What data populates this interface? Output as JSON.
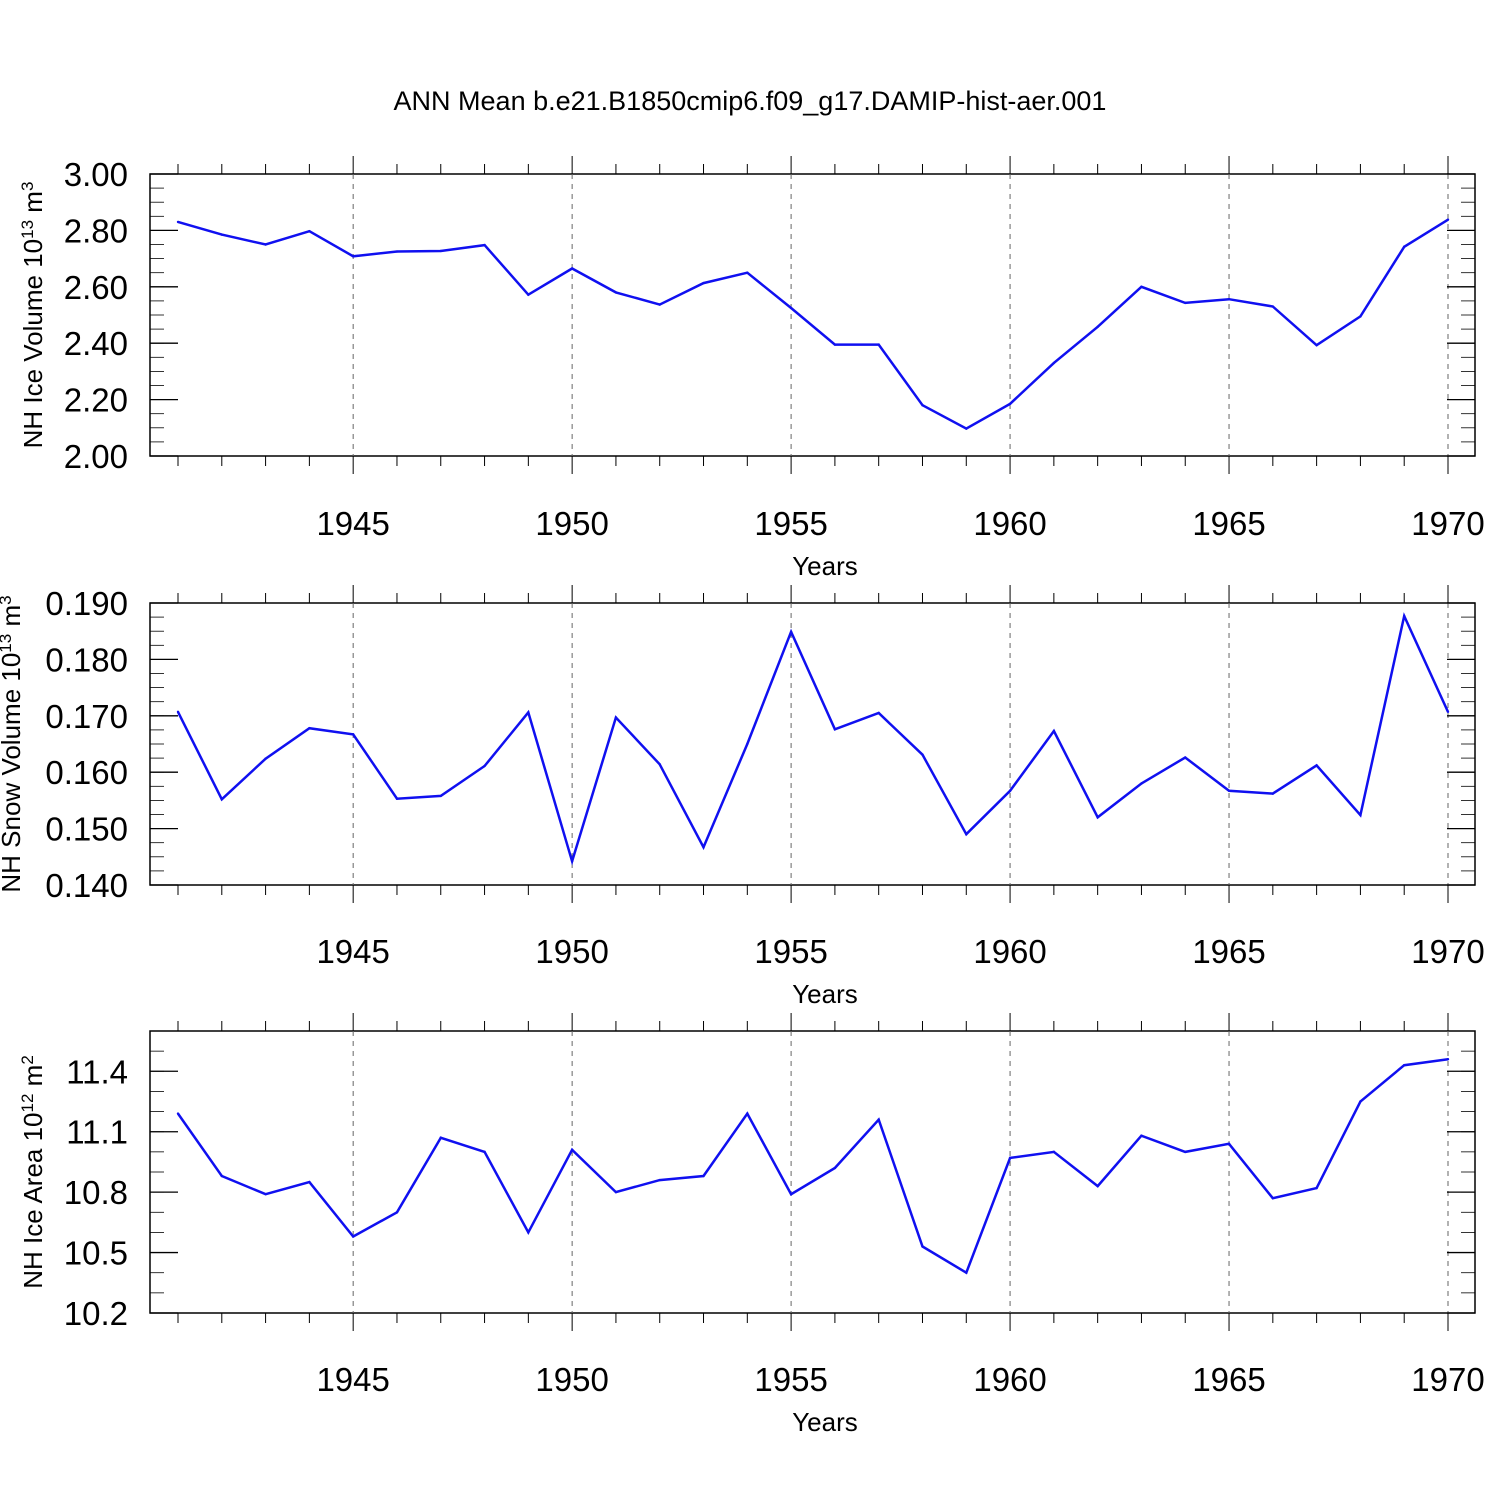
{
  "title": "ANN Mean b.e21.B1850cmip6.f09_g17.DAMIP-hist-aer.001",
  "colors": {
    "line": "#1010f0",
    "axis": "#000000",
    "grid": "#666666"
  },
  "chart_data": [
    {
      "type": "line",
      "ylabel": {
        "text": "NH Ice Volume 10",
        "sup": "13",
        "unit": " m",
        "unit_sup": "3"
      },
      "xlabel": "Years",
      "xlim": [
        1941,
        1970
      ],
      "ylim": [
        2.0,
        3.0
      ],
      "x_ticks": [
        1945,
        1950,
        1955,
        1960,
        1965,
        1970
      ],
      "x_tick_labels": [
        "1945",
        "1950",
        "1955",
        "1960",
        "1965",
        "1970"
      ],
      "y_ticks": [
        2.0,
        2.2,
        2.4,
        2.6,
        2.8,
        3.0
      ],
      "y_tick_labels": [
        "2.00",
        "2.20",
        "2.40",
        "2.60",
        "2.80",
        "3.00"
      ],
      "y_minor_step": 0.05,
      "grid": "x dashed at major ticks",
      "x": [
        1941,
        1942,
        1943,
        1944,
        1945,
        1946,
        1947,
        1948,
        1949,
        1950,
        1951,
        1952,
        1953,
        1954,
        1955,
        1956,
        1957,
        1958,
        1959,
        1960,
        1961,
        1962,
        1963,
        1964,
        1965,
        1966,
        1967,
        1968,
        1969,
        1970
      ],
      "values": [
        2.83,
        2.785,
        2.75,
        2.797,
        2.708,
        2.725,
        2.727,
        2.748,
        2.572,
        2.665,
        2.58,
        2.537,
        2.613,
        2.65,
        2.525,
        2.395,
        2.395,
        2.18,
        2.097,
        2.185,
        2.33,
        2.458,
        2.6,
        2.543,
        2.556,
        2.53,
        2.393,
        2.495,
        2.742,
        2.838
      ]
    },
    {
      "type": "line",
      "ylabel": {
        "text": "NH Snow Volume 10",
        "sup": "13",
        "unit": " m",
        "unit_sup": "3"
      },
      "xlabel": "Years",
      "xlim": [
        1941,
        1970
      ],
      "ylim": [
        0.14,
        0.19
      ],
      "x_ticks": [
        1945,
        1950,
        1955,
        1960,
        1965,
        1970
      ],
      "x_tick_labels": [
        "1945",
        "1950",
        "1955",
        "1960",
        "1965",
        "1970"
      ],
      "y_ticks": [
        0.14,
        0.15,
        0.16,
        0.17,
        0.18,
        0.19
      ],
      "y_tick_labels": [
        "0.140",
        "0.150",
        "0.160",
        "0.170",
        "0.180",
        "0.190"
      ],
      "y_minor_step": 0.0025,
      "grid": "x dashed at major ticks",
      "x": [
        1941,
        1942,
        1943,
        1944,
        1945,
        1946,
        1947,
        1948,
        1949,
        1950,
        1951,
        1952,
        1953,
        1954,
        1955,
        1956,
        1957,
        1958,
        1959,
        1960,
        1961,
        1962,
        1963,
        1964,
        1965,
        1966,
        1967,
        1968,
        1969,
        1970
      ],
      "values": [
        0.1707,
        0.1552,
        0.1624,
        0.1678,
        0.1667,
        0.1553,
        0.1558,
        0.1611,
        0.1706,
        0.1442,
        0.1697,
        0.1614,
        0.1467,
        0.165,
        0.1849,
        0.1676,
        0.1705,
        0.1631,
        0.149,
        0.1567,
        0.1673,
        0.152,
        0.158,
        0.1626,
        0.1567,
        0.1562,
        0.1612,
        0.1524,
        0.1877,
        0.1707
      ]
    },
    {
      "type": "line",
      "ylabel": {
        "text": "NH Ice Area 10",
        "sup": "12",
        "unit": " m",
        "unit_sup": "2"
      },
      "xlabel": "Years",
      "xlim": [
        1941,
        1970
      ],
      "ylim": [
        10.2,
        11.6
      ],
      "x_ticks": [
        1945,
        1950,
        1955,
        1960,
        1965,
        1970
      ],
      "x_tick_labels": [
        "1945",
        "1950",
        "1955",
        "1960",
        "1965",
        "1970"
      ],
      "y_ticks": [
        10.2,
        10.5,
        10.8,
        11.1,
        11.4
      ],
      "y_tick_labels": [
        "10.2",
        "10.5",
        "10.8",
        "11.1",
        "11.4"
      ],
      "y_minor_step": 0.1,
      "grid": "x dashed at major ticks",
      "x": [
        1941,
        1942,
        1943,
        1944,
        1945,
        1946,
        1947,
        1948,
        1949,
        1950,
        1951,
        1952,
        1953,
        1954,
        1955,
        1956,
        1957,
        1958,
        1959,
        1960,
        1961,
        1962,
        1963,
        1964,
        1965,
        1966,
        1967,
        1968,
        1969,
        1970
      ],
      "values": [
        11.19,
        10.88,
        10.79,
        10.85,
        10.58,
        10.7,
        11.07,
        11.0,
        10.6,
        11.01,
        10.8,
        10.86,
        10.88,
        11.19,
        10.79,
        10.92,
        11.16,
        10.53,
        10.4,
        10.97,
        11.0,
        10.83,
        11.08,
        11.0,
        11.04,
        10.77,
        10.82,
        11.25,
        11.43,
        11.46
      ]
    }
  ]
}
